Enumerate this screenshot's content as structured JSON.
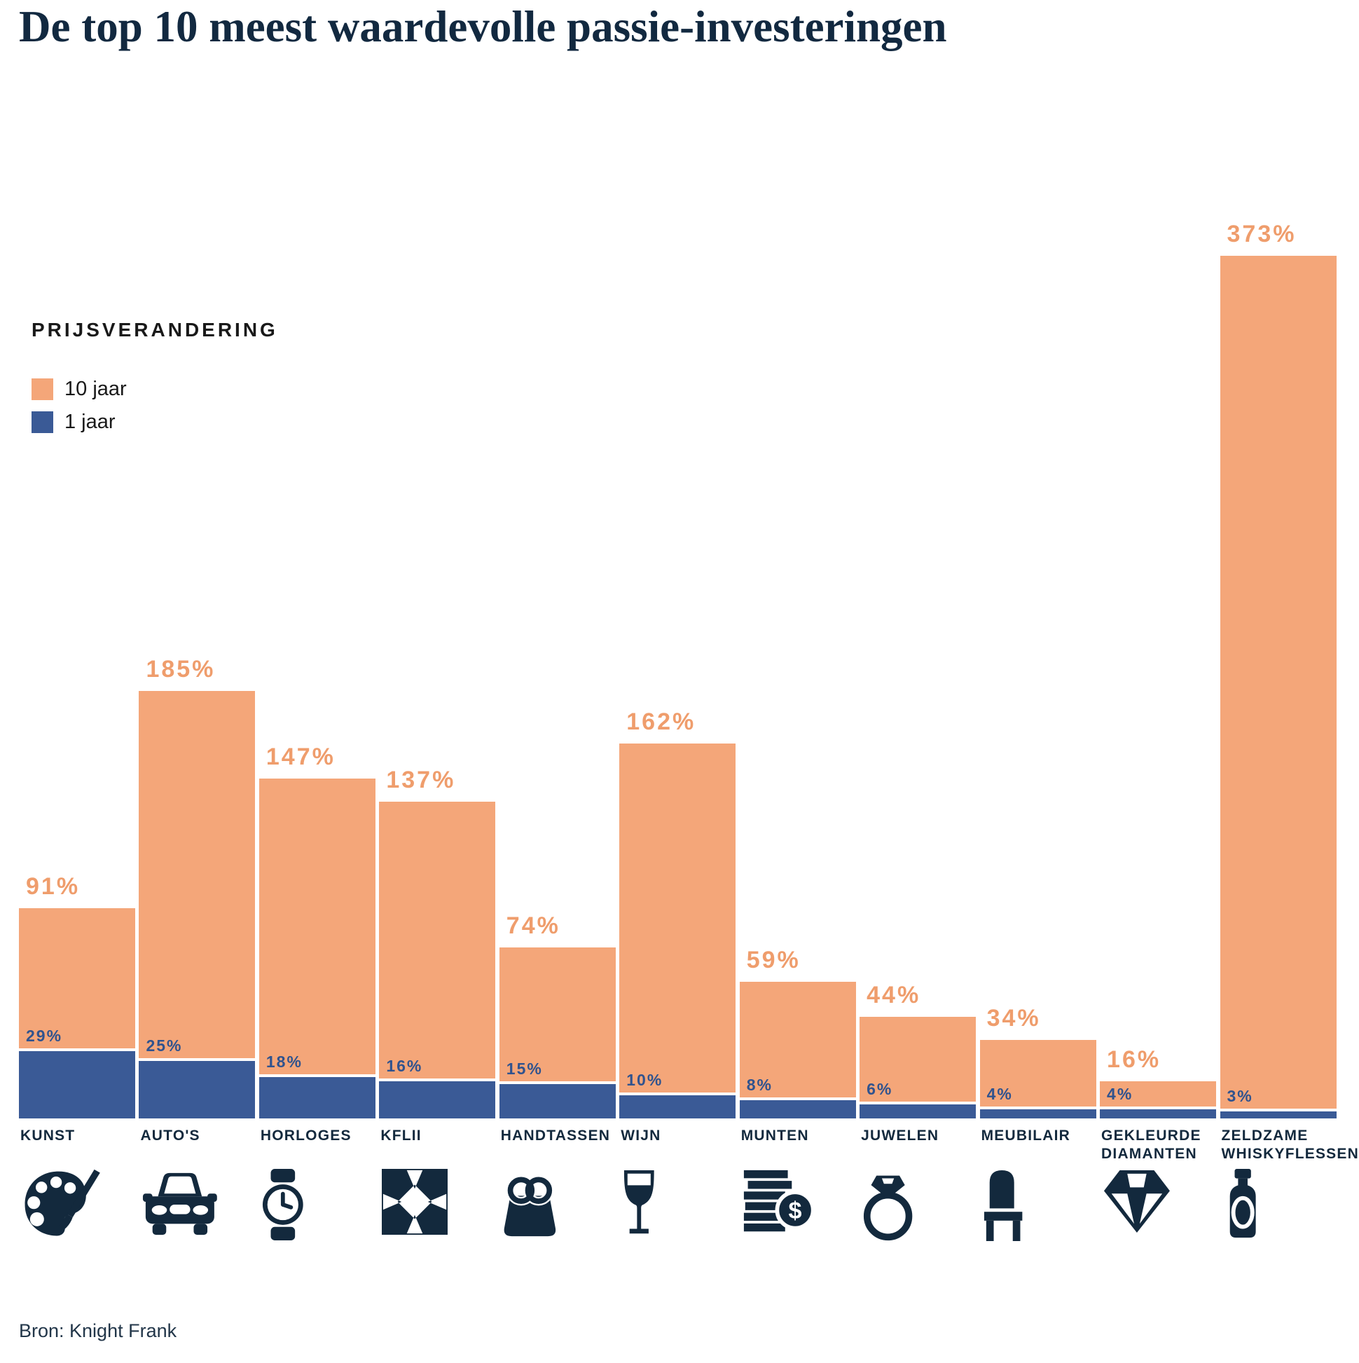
{
  "title": "De top 10 meest waardevolle passie-investeringen",
  "legend": {
    "heading": "PRIJSVERANDERING",
    "items": [
      {
        "label": "10 jaar",
        "color": "#F4A679"
      },
      {
        "label": "1 jaar",
        "color": "#3A5A96"
      }
    ]
  },
  "source": "Bron: Knight Frank",
  "colors": {
    "ten_year_bar": "#F4A679",
    "ten_year_label": "#EF9D6C",
    "one_year_bar": "#3A5A96",
    "one_year_label": "#30538E",
    "navy_text": "#13293D",
    "icon_navy": "#13293D",
    "title_text": "#122940",
    "background": "#FFFFFF"
  },
  "chart_data": {
    "type": "bar",
    "title": "De top 10 meest waardevolle passie-investeringen",
    "categories": [
      "KUNST",
      "AUTO'S",
      "HORLOGES",
      "KFLII",
      "HANDTASSEN",
      "WIJN",
      "MUNTEN",
      "JUWELEN",
      "MEUBILAIR",
      "GEKLEURDE DIAMANTEN",
      "ZELDZAME WHISKYFLESSEN"
    ],
    "icons": [
      "palette-icon",
      "car-icon",
      "watch-icon",
      "kflii-logo-icon",
      "handbag-icon",
      "wine-glass-icon",
      "coins-icon",
      "ring-icon",
      "chair-icon",
      "diamond-icon",
      "whisky-bottle-icon"
    ],
    "series": [
      {
        "name": "10 jaar",
        "values": [
          91,
          185,
          147,
          137,
          74,
          162,
          59,
          44,
          34,
          16,
          373
        ],
        "color": "#F4A679"
      },
      {
        "name": "1 jaar",
        "values": [
          29,
          25,
          18,
          16,
          15,
          10,
          8,
          6,
          4,
          4,
          3
        ],
        "color": "#3A5A96"
      }
    ],
    "unit": "%",
    "ylabel": "PRIJSVERANDERING",
    "ylim": [
      0,
      400
    ],
    "grid": false,
    "legend_position": "top-left",
    "value_labels": "above-segments"
  }
}
